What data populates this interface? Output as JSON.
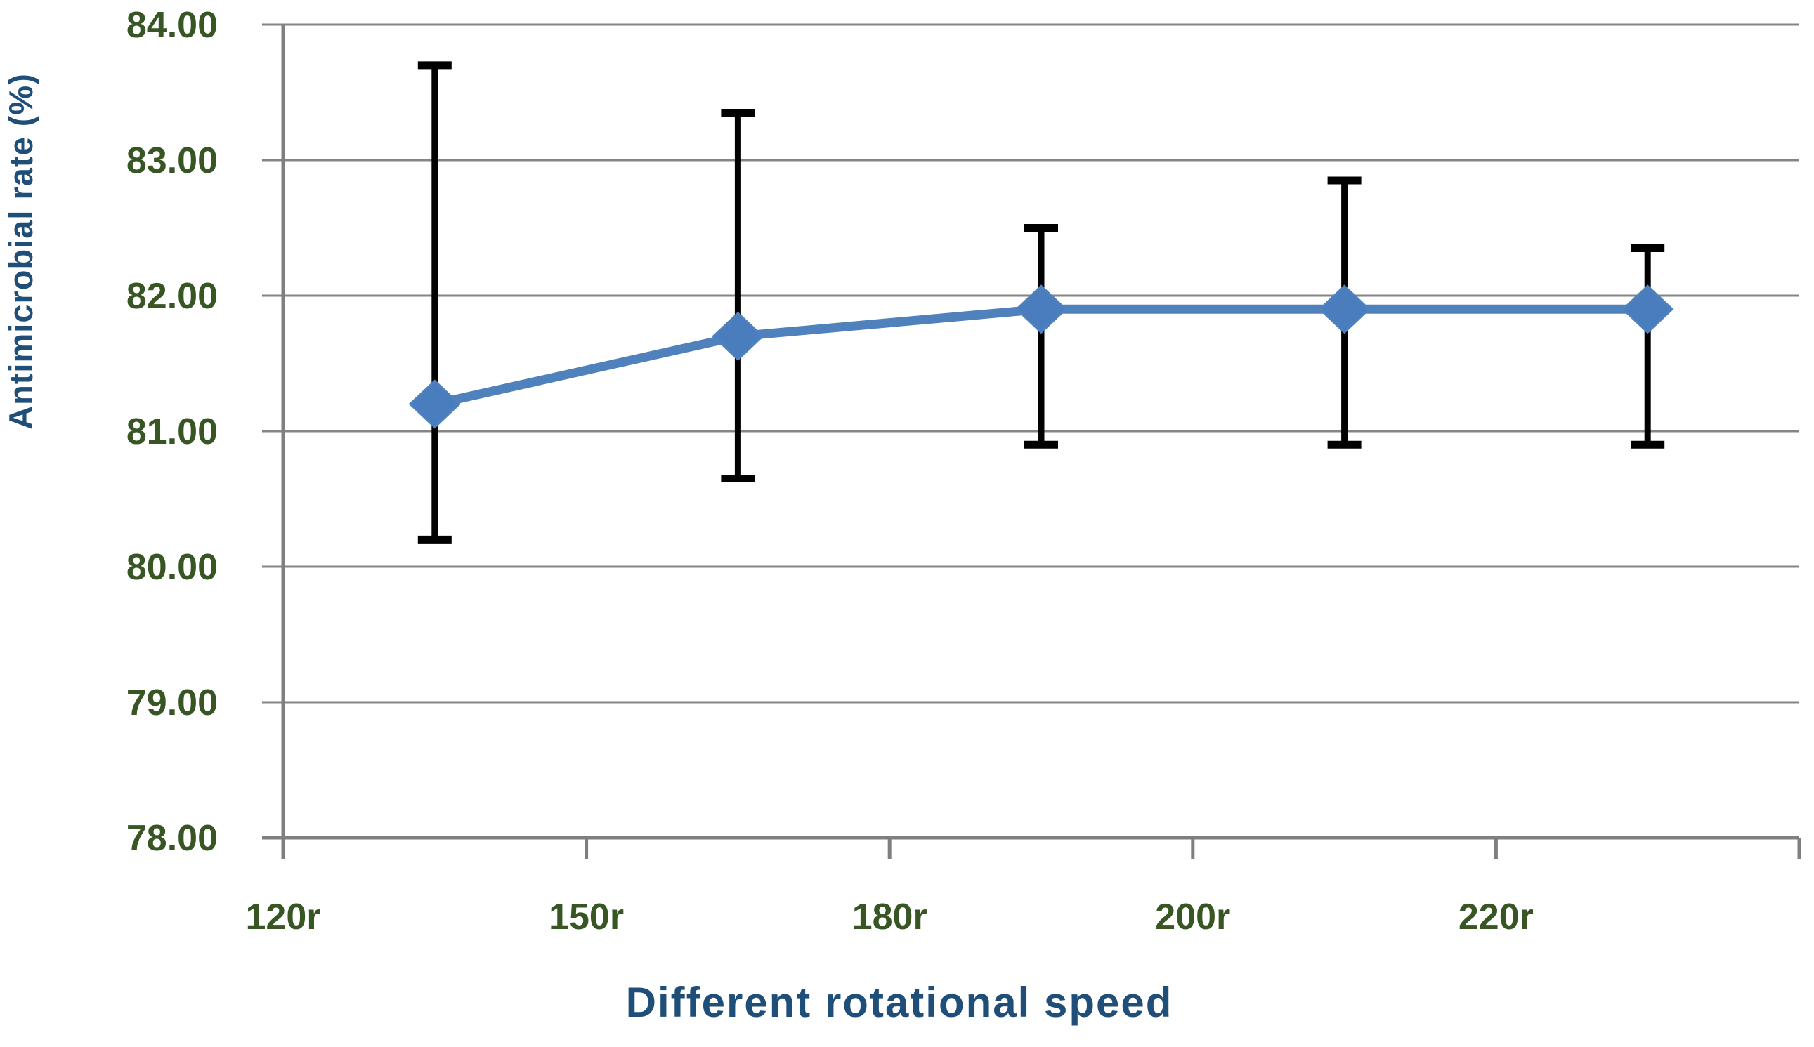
{
  "chart_data": {
    "type": "line",
    "title": "",
    "categories": [
      "120r",
      "150r",
      "180r",
      "200r",
      "220r"
    ],
    "values": [
      81.2,
      81.7,
      81.9,
      81.9,
      81.9
    ],
    "error_low": [
      80.2,
      80.65,
      80.9,
      80.9,
      80.9
    ],
    "error_high": [
      83.7,
      83.35,
      82.5,
      82.85,
      82.35
    ],
    "xlabel": "Different rotational speed",
    "ylabel": "Antimicrobial rate (%)",
    "ylim": [
      78,
      84
    ],
    "ytick_step": 1,
    "ytick_labels": [
      "78.00",
      "79.00",
      "80.00",
      "81.00",
      "82.00",
      "83.00",
      "84.00"
    ],
    "xtick_label_position": "category-boundary",
    "marker": "diamond",
    "grid": true,
    "legend": "none"
  },
  "colors": {
    "series_line": "#4f81bd",
    "marker_fill": "#4a7dbd",
    "error_bar": "#000000",
    "gridline": "#858585",
    "axis_line": "#7f7f7f",
    "tick_label": "#375623",
    "axis_title": "#1f4e79",
    "background": "#ffffff"
  }
}
